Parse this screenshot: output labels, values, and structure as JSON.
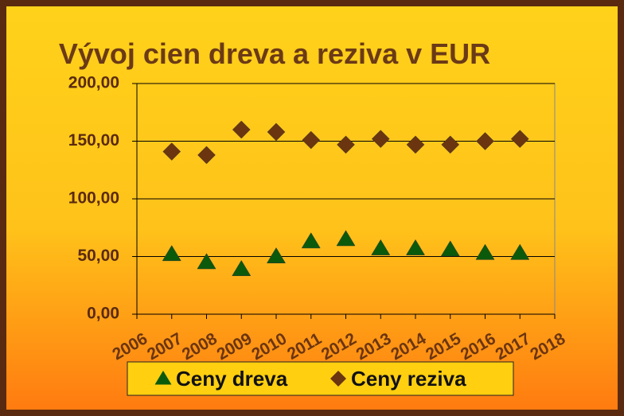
{
  "chart_data": {
    "type": "scatter",
    "title": "Vývoj cien dreva a reziva v EUR",
    "x": [
      2007,
      2008,
      2009,
      2010,
      2011,
      2012,
      2013,
      2014,
      2015,
      2016,
      2017
    ],
    "series": [
      {
        "name": "Ceny dreva",
        "color": "#0b5a0b",
        "marker": "triangle",
        "values": [
          52,
          45,
          39,
          50,
          63,
          65,
          57,
          57,
          56,
          53,
          53
        ]
      },
      {
        "name": "Ceny reziva",
        "color": "#6b3510",
        "marker": "diamond",
        "values": [
          141,
          138,
          160,
          158,
          151,
          147,
          152,
          147,
          147,
          150,
          152
        ]
      }
    ],
    "xlim": [
      2006,
      2018
    ],
    "xticks": [
      2006,
      2007,
      2008,
      2009,
      2010,
      2011,
      2012,
      2013,
      2014,
      2015,
      2016,
      2017,
      2018
    ],
    "ylim": [
      0,
      200
    ],
    "yticks": [
      {
        "value": 0,
        "label": "0,00"
      },
      {
        "value": 50,
        "label": "50,00"
      },
      {
        "value": 100,
        "label": "100,00"
      },
      {
        "value": 150,
        "label": "150,00"
      },
      {
        "value": 200,
        "label": "200,00"
      }
    ],
    "grid": true,
    "legend": "bottom"
  }
}
